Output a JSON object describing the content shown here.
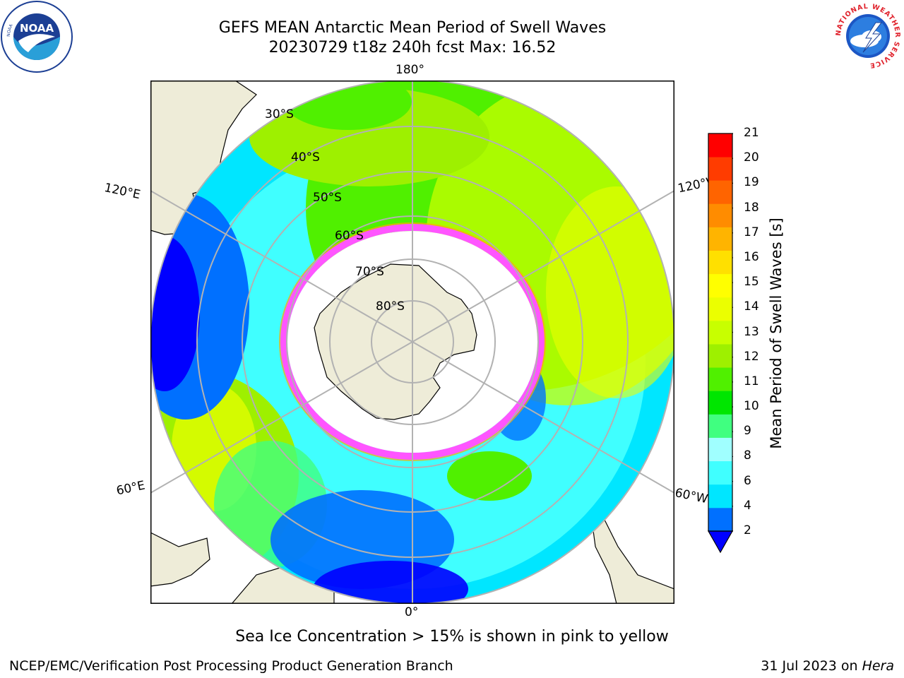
{
  "header": {
    "title_line1": "GEFS MEAN Antarctic Mean Period of Swell Waves",
    "title_line2": "20230729 t18z 240h fcst   Max: 16.52"
  },
  "logos": {
    "left": "NOAA",
    "right": "NATIONAL WEATHER SERVICE"
  },
  "map": {
    "projection": "south-polar-stereographic",
    "longitude_labels": {
      "top": "180°",
      "bottom": "0°",
      "upper_left": "120°E",
      "upper_right": "120°W",
      "lower_left": "60°E",
      "lower_right": "60°W"
    },
    "latitude_labels": [
      "30°S",
      "40°S",
      "50°S",
      "60°S",
      "70°S",
      "80°S"
    ],
    "colors": {
      "land": "#eeecd8",
      "ice": "#ffffff",
      "ice_edge": [
        "#ff55ff",
        "#ffaa00",
        "#ffff00"
      ],
      "grid": "#b2b2b2"
    }
  },
  "colorbar": {
    "title": "Mean Period of Swell Waves [s]",
    "ticks": [
      "21",
      "20",
      "19",
      "18",
      "17",
      "16",
      "15",
      "14",
      "13",
      "12",
      "11",
      "10",
      "9",
      "8",
      "6",
      "4",
      "2"
    ],
    "colors_bottom_to_top": [
      "#0070ff",
      "#00e6ff",
      "#40ffff",
      "#a0ffff",
      "#40ff80",
      "#00e600",
      "#50f000",
      "#9ef000",
      "#c8ff00",
      "#ebff00",
      "#ffff00",
      "#ffe000",
      "#ffb400",
      "#ff8c00",
      "#ff6400",
      "#ff3c00",
      "#ff0000"
    ],
    "under_color": "#0000ff"
  },
  "footer": {
    "note": "Sea Ice Concentration > 15% is shown in pink to yellow",
    "credit": "NCEP/EMC/Verification Post Processing Product Generation Branch",
    "date": "31 Jul 2023 on ",
    "host": "Hera"
  }
}
